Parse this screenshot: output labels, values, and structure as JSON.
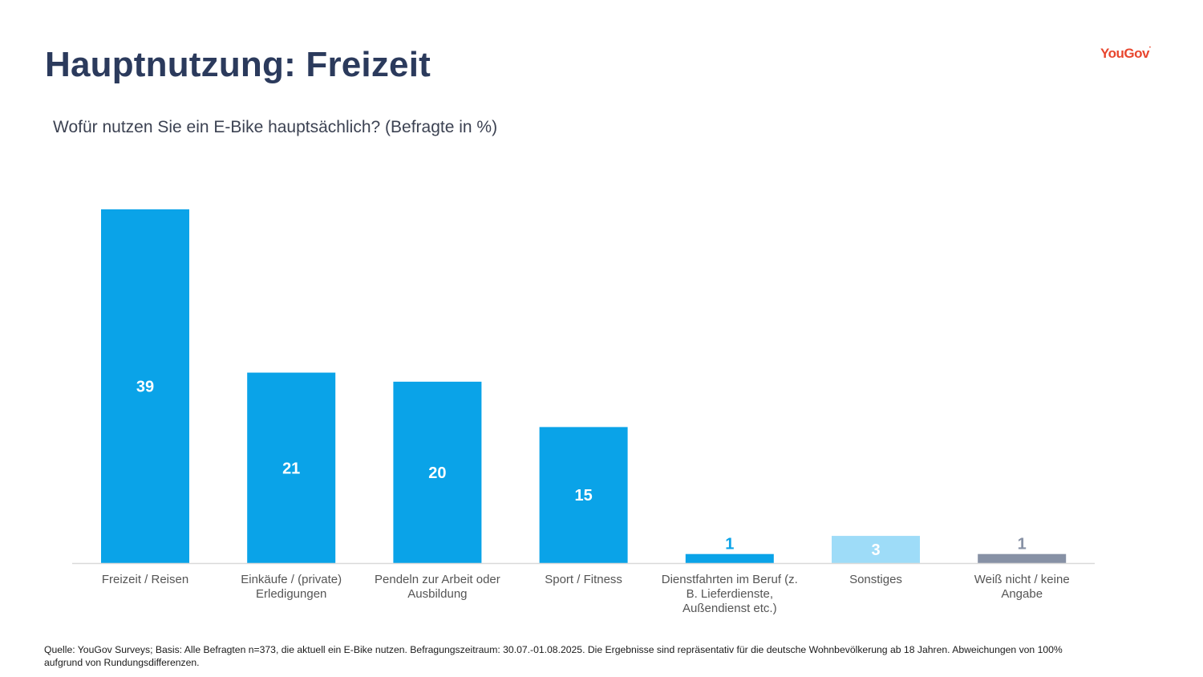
{
  "page": {
    "title": "Hauptnutzung: Freizeit",
    "subtitle": "Wofür nutzen Sie ein E-Bike hauptsächlich? (Befragte in %)",
    "logo": "YouGov",
    "footnote": "Quelle: YouGov Surveys; Basis: Alle Befragten n=373, die aktuell ein E-Bike nutzen. Befragungszeitraum: 30.07.-01.08.2025. Die Ergebnisse sind repräsentativ für die deutsche Wohnbevölkerung ab 18 Jahren. Abweichungen von 100% aufgrund von Rundungsdifferenzen."
  },
  "chart_data": {
    "type": "bar",
    "title": "",
    "xlabel": "",
    "ylabel": "",
    "ylim": [
      0,
      39
    ],
    "grid": false,
    "categories": [
      [
        "Freizeit / Reisen"
      ],
      [
        "Einkäufe / (private)",
        "Erledigungen"
      ],
      [
        "Pendeln zur Arbeit oder",
        "Ausbildung"
      ],
      [
        "Sport / Fitness"
      ],
      [
        "Dienstfahrten im Beruf (z.",
        "B. Lieferdienste,",
        "Außendienst etc.)"
      ],
      [
        "Sonstiges"
      ],
      [
        "Weiß nicht / keine",
        "Angabe"
      ]
    ],
    "values": [
      39,
      21,
      20,
      15,
      1,
      3,
      1
    ],
    "bar_colors": [
      "#0aa3e8",
      "#0aa3e8",
      "#0aa3e8",
      "#0aa3e8",
      "#0aa3e8",
      "#9edcf8",
      "#8791a5"
    ],
    "label_colors": [
      "#ffffff",
      "#ffffff",
      "#ffffff",
      "#ffffff",
      "#0aa3e8",
      "#ffffff",
      "#8791a5"
    ],
    "axis_label_color": "#555555"
  }
}
